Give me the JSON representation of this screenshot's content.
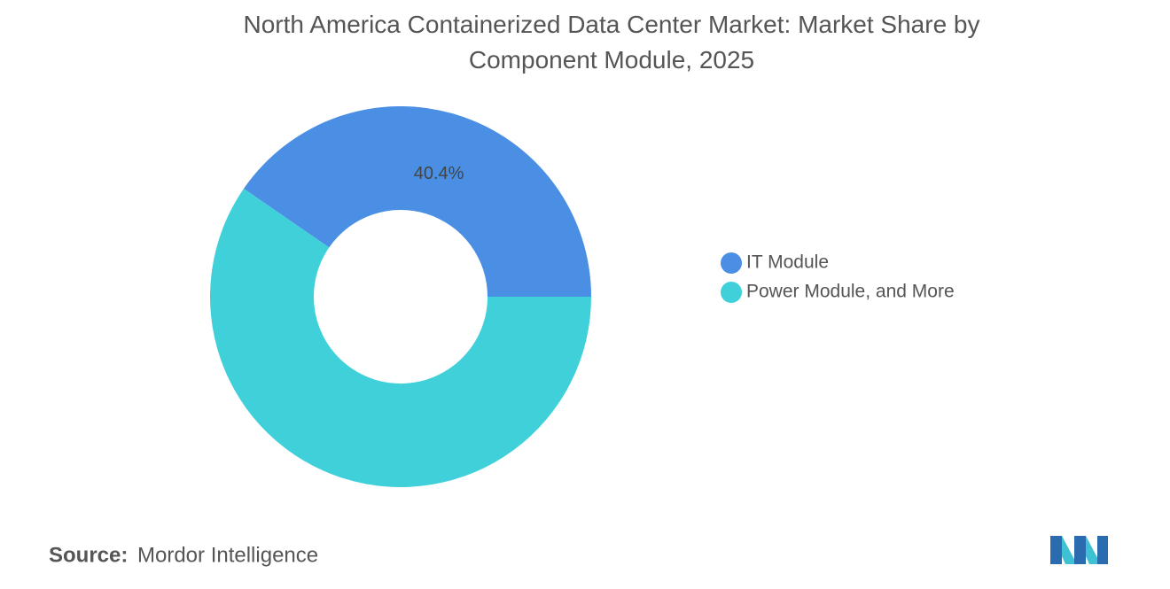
{
  "chart_data": {
    "type": "donut",
    "title": "North America Containerized Data Center Market: Market Share by Component Module, 2025",
    "categories": [
      "IT Module",
      "Power Module, and More"
    ],
    "values": [
      40.4,
      59.6
    ],
    "value_labels": [
      "40.4%",
      null
    ],
    "colors": [
      "#4a8fe3",
      "#40d0da"
    ],
    "legend": "right"
  },
  "source": {
    "label": "Source:",
    "text": "Mordor Intelligence"
  }
}
